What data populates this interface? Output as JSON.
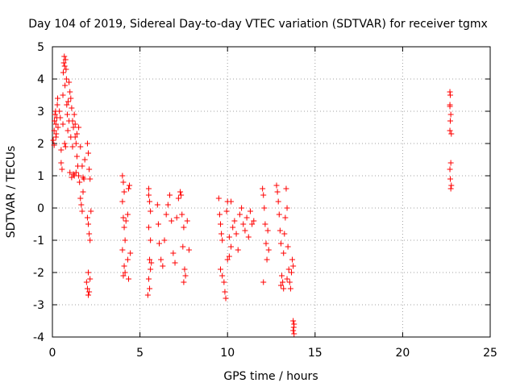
{
  "chart_data": {
    "type": "scatter",
    "title": "Day 104 of 2019, Sidereal Day-to-day VTEC variation (SDTVAR) for receiver tgmx",
    "xlabel": "GPS time / hours",
    "ylabel": "SDTVAR / TECUs",
    "xlim": [
      0,
      25
    ],
    "ylim": [
      -4,
      5
    ],
    "xticks": [
      0,
      5,
      10,
      15,
      20,
      25
    ],
    "yticks": [
      -4,
      -3,
      -2,
      -1,
      0,
      1,
      2,
      3,
      4,
      5
    ],
    "xtick_labels": [
      "0",
      "5",
      "10",
      "15",
      "20",
      "25"
    ],
    "ytick_labels": [
      "-4",
      "-3",
      "-2",
      "-1",
      "0",
      "1",
      "2",
      "3",
      "4",
      "5"
    ],
    "grid": true,
    "marker": "+",
    "color": "#ff0000",
    "series": [
      {
        "name": "SDTVAR",
        "points": [
          [
            0.05,
            2.1
          ],
          [
            0.1,
            2.4
          ],
          [
            0.12,
            2.7
          ],
          [
            0.15,
            2.9
          ],
          [
            0.18,
            3.0
          ],
          [
            0.2,
            2.6
          ],
          [
            0.22,
            2.3
          ],
          [
            0.25,
            2.8
          ],
          [
            0.28,
            3.2
          ],
          [
            0.3,
            3.4
          ],
          [
            0.32,
            2.5
          ],
          [
            0.1,
            1.95
          ],
          [
            0.2,
            2.2
          ],
          [
            0.4,
            3.0
          ],
          [
            0.45,
            2.8
          ],
          [
            0.5,
            1.8
          ],
          [
            0.5,
            1.4
          ],
          [
            0.55,
            1.2
          ],
          [
            0.6,
            2.6
          ],
          [
            0.6,
            3.5
          ],
          [
            0.62,
            4.2
          ],
          [
            0.65,
            4.5
          ],
          [
            0.68,
            4.7
          ],
          [
            0.7,
            4.4
          ],
          [
            0.72,
            3.8
          ],
          [
            0.75,
            4.6
          ],
          [
            0.78,
            4.3
          ],
          [
            0.8,
            4.0
          ],
          [
            0.82,
            3.2
          ],
          [
            0.85,
            2.9
          ],
          [
            0.88,
            2.4
          ],
          [
            0.9,
            3.3
          ],
          [
            0.95,
            3.9
          ],
          [
            1.0,
            3.6
          ],
          [
            1.05,
            3.4
          ],
          [
            1.1,
            3.1
          ],
          [
            1.15,
            2.7
          ],
          [
            1.2,
            2.5
          ],
          [
            1.25,
            2.9
          ],
          [
            1.3,
            2.2
          ],
          [
            1.35,
            2.0
          ],
          [
            1.4,
            1.6
          ],
          [
            1.45,
            1.3
          ],
          [
            1.5,
            1.0
          ],
          [
            1.55,
            0.8
          ],
          [
            1.6,
            0.3
          ],
          [
            1.65,
            0.1
          ],
          [
            1.7,
            -0.1
          ],
          [
            1.75,
            0.5
          ],
          [
            1.8,
            0.9
          ],
          [
            1.85,
            1.5
          ],
          [
            1.0,
            1.1
          ],
          [
            1.1,
            0.95
          ],
          [
            1.2,
            1.05
          ],
          [
            1.3,
            2.6
          ],
          [
            1.4,
            2.3
          ],
          [
            0.7,
            2.0
          ],
          [
            0.75,
            1.9
          ],
          [
            0.95,
            2.7
          ],
          [
            1.05,
            2.2
          ],
          [
            1.15,
            1.9
          ],
          [
            1.25,
            1.0
          ],
          [
            1.35,
            1.1
          ],
          [
            1.5,
            2.5
          ],
          [
            1.6,
            1.9
          ],
          [
            1.7,
            1.3
          ],
          [
            1.75,
            0.95
          ],
          [
            2.0,
            2.0
          ],
          [
            2.05,
            1.7
          ],
          [
            2.1,
            1.2
          ],
          [
            2.15,
            0.9
          ],
          [
            2.0,
            -0.3
          ],
          [
            2.05,
            -0.5
          ],
          [
            2.1,
            -0.8
          ],
          [
            2.15,
            -1.0
          ],
          [
            2.2,
            -0.1
          ],
          [
            1.95,
            -2.3
          ],
          [
            2.0,
            -2.5
          ],
          [
            2.05,
            -2.7
          ],
          [
            2.1,
            -2.6
          ],
          [
            2.15,
            -2.2
          ],
          [
            2.05,
            -2.0
          ],
          [
            4.0,
            1.0
          ],
          [
            4.05,
            0.8
          ],
          [
            4.1,
            0.5
          ],
          [
            4.0,
            0.2
          ],
          [
            4.05,
            -0.3
          ],
          [
            4.1,
            -0.6
          ],
          [
            4.15,
            -1.0
          ],
          [
            4.0,
            -1.3
          ],
          [
            4.1,
            -1.8
          ],
          [
            4.05,
            -2.1
          ],
          [
            4.15,
            -2.0
          ],
          [
            4.2,
            -0.4
          ],
          [
            4.3,
            -0.2
          ],
          [
            4.35,
            0.6
          ],
          [
            4.4,
            0.7
          ],
          [
            4.45,
            -1.4
          ],
          [
            4.35,
            -2.2
          ],
          [
            4.3,
            -1.6
          ],
          [
            5.5,
            0.4
          ],
          [
            5.55,
            0.2
          ],
          [
            5.6,
            -0.1
          ],
          [
            5.5,
            -0.6
          ],
          [
            5.6,
            -1.0
          ],
          [
            5.55,
            -1.6
          ],
          [
            5.6,
            -1.9
          ],
          [
            5.5,
            -2.2
          ],
          [
            5.55,
            -2.5
          ],
          [
            5.45,
            -2.7
          ],
          [
            5.65,
            -1.7
          ],
          [
            5.5,
            0.6
          ],
          [
            6.0,
            0.1
          ],
          [
            6.05,
            -0.5
          ],
          [
            6.1,
            -1.1
          ],
          [
            6.2,
            -1.6
          ],
          [
            6.3,
            -1.8
          ],
          [
            6.4,
            -1.0
          ],
          [
            6.5,
            -0.2
          ],
          [
            6.6,
            0.1
          ],
          [
            6.7,
            0.4
          ],
          [
            6.8,
            -0.4
          ],
          [
            6.9,
            -1.4
          ],
          [
            7.0,
            -1.7
          ],
          [
            7.1,
            -0.3
          ],
          [
            7.2,
            0.3
          ],
          [
            7.3,
            0.5
          ],
          [
            7.35,
            0.4
          ],
          [
            7.4,
            -0.2
          ],
          [
            7.5,
            -0.6
          ],
          [
            7.55,
            -1.9
          ],
          [
            7.6,
            -2.1
          ],
          [
            7.7,
            -0.4
          ],
          [
            7.8,
            -1.3
          ],
          [
            7.5,
            -2.3
          ],
          [
            7.45,
            -1.2
          ],
          [
            9.5,
            0.3
          ],
          [
            9.55,
            -0.2
          ],
          [
            9.6,
            -0.5
          ],
          [
            9.65,
            -0.8
          ],
          [
            9.7,
            -1.0
          ],
          [
            9.6,
            -1.9
          ],
          [
            9.7,
            -2.1
          ],
          [
            9.8,
            -2.3
          ],
          [
            9.85,
            -2.6
          ],
          [
            9.9,
            -2.8
          ],
          [
            9.95,
            -0.1
          ],
          [
            10.0,
            0.2
          ],
          [
            10.1,
            -0.9
          ],
          [
            10.2,
            -1.2
          ],
          [
            10.3,
            -0.6
          ],
          [
            10.4,
            -0.4
          ],
          [
            10.5,
            -0.8
          ],
          [
            10.6,
            -1.3
          ],
          [
            10.7,
            -0.2
          ],
          [
            10.8,
            0.0
          ],
          [
            10.9,
            -0.5
          ],
          [
            11.0,
            -0.7
          ],
          [
            11.1,
            -0.3
          ],
          [
            11.2,
            -0.9
          ],
          [
            11.3,
            -0.1
          ],
          [
            11.4,
            -0.5
          ],
          [
            11.5,
            -0.4
          ],
          [
            10.0,
            -1.6
          ],
          [
            10.1,
            -1.5
          ],
          [
            10.2,
            0.2
          ],
          [
            12.0,
            0.6
          ],
          [
            12.05,
            0.4
          ],
          [
            12.1,
            0.0
          ],
          [
            12.15,
            -0.5
          ],
          [
            12.2,
            -1.1
          ],
          [
            12.25,
            -1.6
          ],
          [
            12.3,
            -0.7
          ],
          [
            12.05,
            -2.3
          ],
          [
            12.35,
            -1.3
          ],
          [
            12.8,
            0.7
          ],
          [
            12.85,
            0.5
          ],
          [
            12.9,
            0.2
          ],
          [
            12.95,
            -0.2
          ],
          [
            13.0,
            -0.7
          ],
          [
            13.05,
            -1.1
          ],
          [
            13.1,
            -2.1
          ],
          [
            13.15,
            -2.3
          ],
          [
            13.2,
            -1.4
          ],
          [
            13.25,
            -0.8
          ],
          [
            13.3,
            -0.3
          ],
          [
            13.35,
            0.6
          ],
          [
            13.4,
            0.0
          ],
          [
            13.45,
            -1.2
          ],
          [
            13.5,
            -1.9
          ],
          [
            13.55,
            -2.3
          ],
          [
            13.6,
            -2.5
          ],
          [
            13.65,
            -2.0
          ],
          [
            13.7,
            -1.6
          ],
          [
            13.75,
            -1.8
          ],
          [
            13.05,
            -2.4
          ],
          [
            13.2,
            -2.5
          ],
          [
            13.4,
            -2.2
          ],
          [
            13.75,
            -3.5
          ],
          [
            13.8,
            -3.6
          ],
          [
            13.75,
            -3.8
          ],
          [
            13.8,
            -3.9
          ],
          [
            13.78,
            -3.7
          ],
          [
            22.7,
            3.6
          ],
          [
            22.72,
            3.5
          ],
          [
            22.7,
            3.2
          ],
          [
            22.75,
            2.9
          ],
          [
            22.72,
            2.7
          ],
          [
            22.7,
            2.4
          ],
          [
            22.78,
            2.3
          ],
          [
            22.75,
            1.4
          ],
          [
            22.7,
            1.2
          ],
          [
            22.72,
            0.9
          ],
          [
            22.78,
            0.7
          ],
          [
            22.75,
            0.6
          ],
          [
            22.7,
            3.15
          ]
        ]
      }
    ]
  }
}
